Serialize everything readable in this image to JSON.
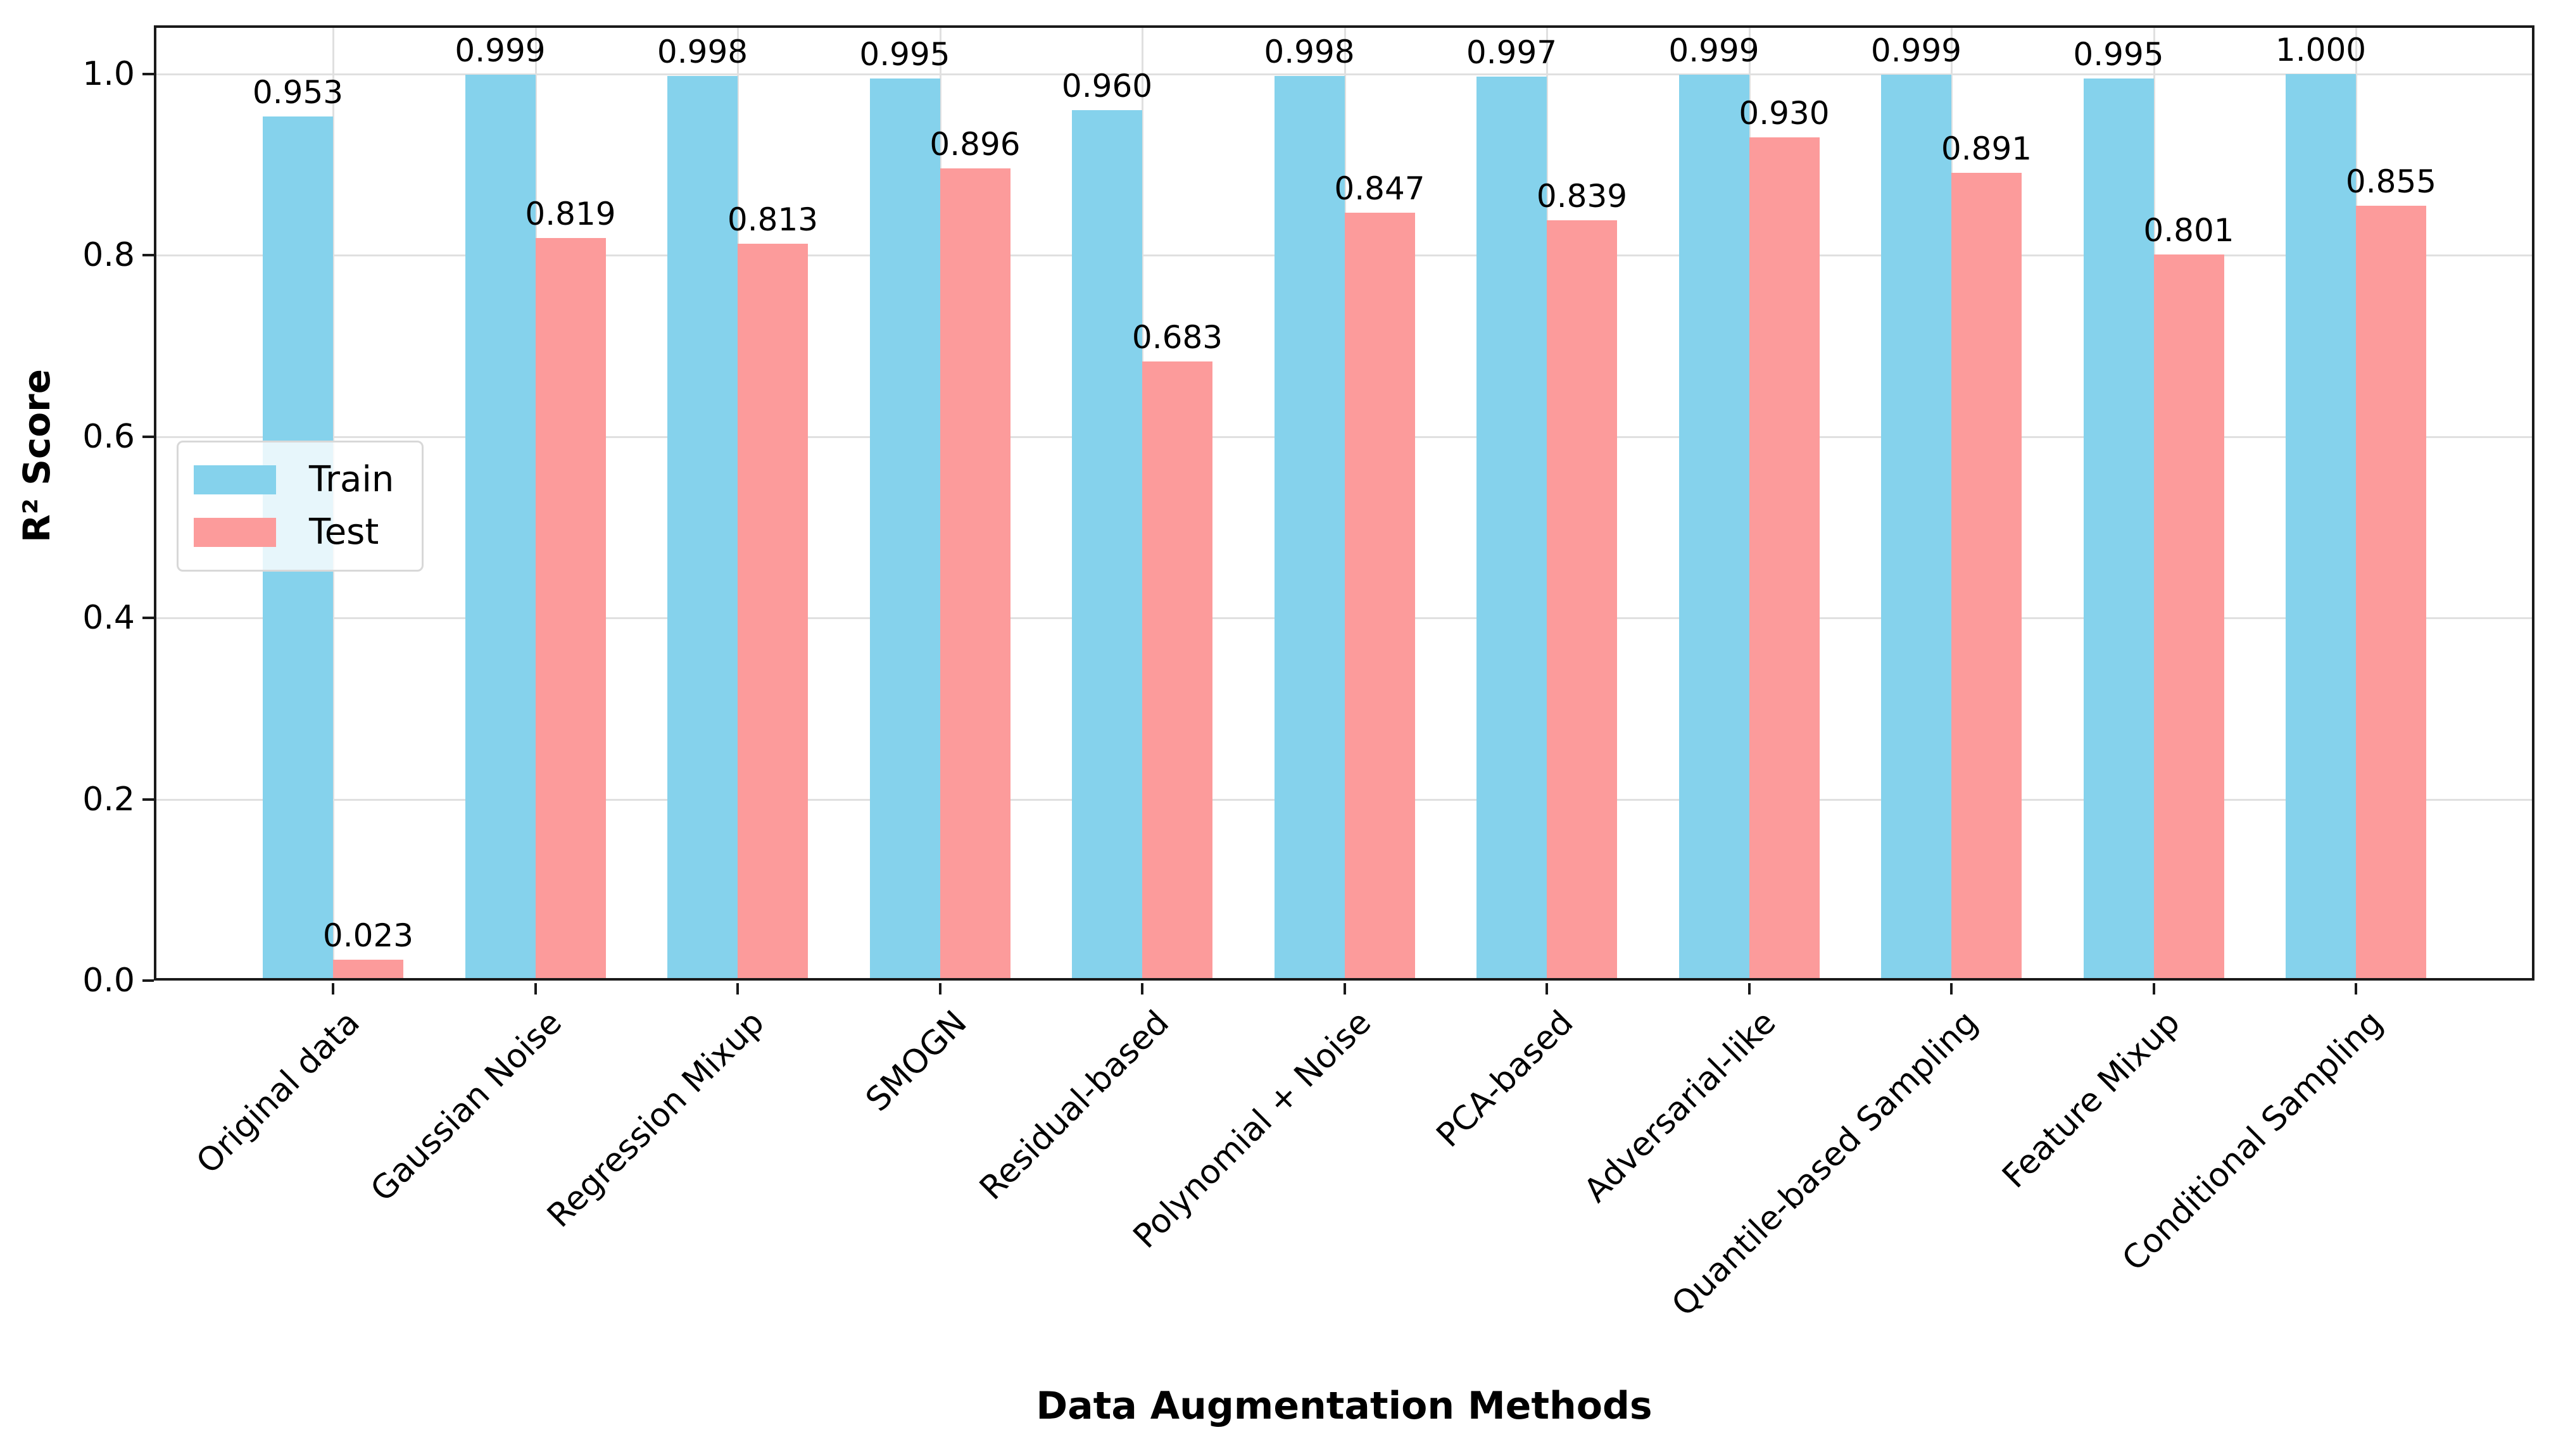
{
  "chart_data": {
    "type": "bar",
    "title": "",
    "xlabel": "Data Augmentation Methods",
    "ylabel": "R² Score",
    "categories": [
      "Original data",
      "Gaussian Noise",
      "Regression Mixup",
      "SMOGN",
      "Residual-based",
      "Polynomial + Noise",
      "PCA-based",
      "Adversarial-like",
      "Quantile-based Sampling",
      "Feature Mixup",
      "Conditional Sampling"
    ],
    "series": [
      {
        "name": "Train",
        "color": "#85D2EC",
        "values": [
          0.953,
          0.999,
          0.998,
          0.995,
          0.96,
          0.998,
          0.997,
          0.999,
          0.999,
          0.995,
          1.0
        ]
      },
      {
        "name": "Test",
        "color": "#FC9B9B",
        "values": [
          0.023,
          0.819,
          0.813,
          0.896,
          0.683,
          0.847,
          0.839,
          0.93,
          0.891,
          0.801,
          0.855
        ]
      }
    ],
    "ylim": [
      0.0,
      1.054
    ],
    "ytick_labels": [
      "0.0",
      "0.2",
      "0.4",
      "0.6",
      "0.8",
      "1.0"
    ],
    "grid": true,
    "legend_position": "upper-left-inside",
    "value_labels": true,
    "value_labels_decimals": 3,
    "colors": {
      "train": "#85D2EC",
      "test": "#FC9B9B",
      "grid": "#e0e0e0",
      "spine": "#1a1a1a",
      "text": "#000000"
    }
  }
}
